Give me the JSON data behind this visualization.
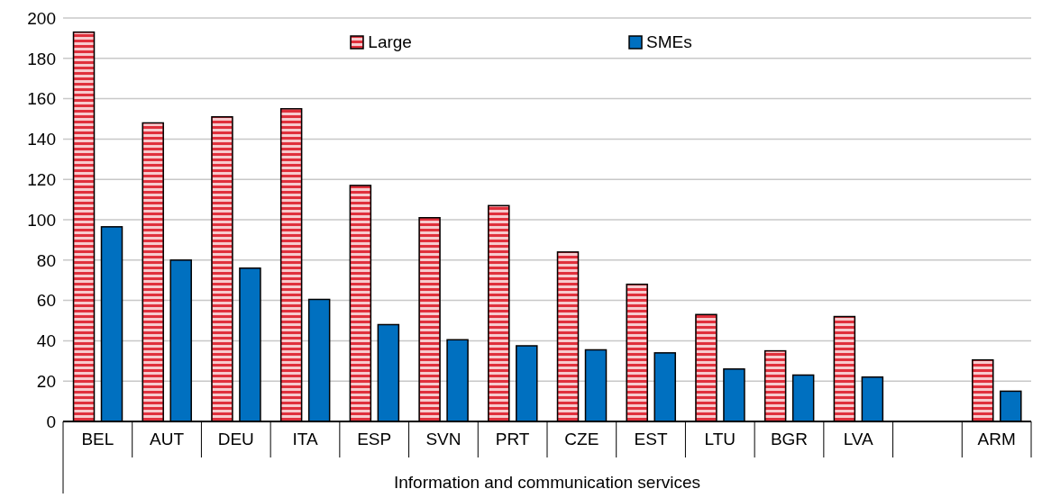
{
  "chart_data": {
    "type": "bar",
    "xlabel": "Information and communication services",
    "categories": [
      "BEL",
      "AUT",
      "DEU",
      "ITA",
      "ESP",
      "SVN",
      "PRT",
      "CZE",
      "EST",
      "LTU",
      "BGR",
      "LVA",
      null,
      "ARM"
    ],
    "series": [
      {
        "name": "Large",
        "color": "#e0303c",
        "values": [
          193,
          148,
          151,
          155,
          117,
          101,
          107,
          84,
          68,
          53,
          35,
          52,
          null,
          30.5
        ]
      },
      {
        "name": "SMEs",
        "color": "#0070c0",
        "values": [
          96.5,
          80,
          76,
          60.5,
          48,
          40.5,
          37.5,
          35.5,
          34,
          26,
          23,
          22,
          null,
          15
        ]
      }
    ],
    "ylim": [
      0,
      200
    ],
    "yticks": [
      0,
      20,
      40,
      60,
      80,
      100,
      120,
      140,
      160,
      180,
      200
    ],
    "grid": "y",
    "legend": "top"
  }
}
